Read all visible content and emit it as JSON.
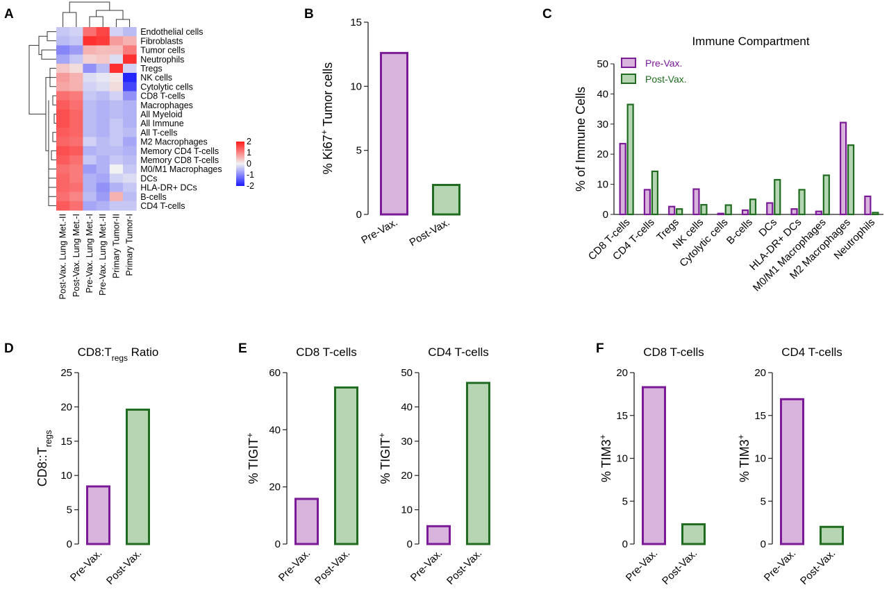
{
  "colors": {
    "pre_fill": "#d8b4dc",
    "pre_stroke": "#7a1a96",
    "post_fill": "#b6d6b3",
    "post_stroke": "#1f6b1f",
    "heat_low": "#1a1aff",
    "heat_mid": "#f2f2f2",
    "heat_high": "#ff1a1a"
  },
  "panels": {
    "A": "A",
    "B": "B",
    "C": "C",
    "D": "D",
    "E": "E",
    "F": "F"
  },
  "heatmap": {
    "rows": [
      "Endothelial cells",
      "Fibroblasts",
      "Tumor cells",
      "Neutrophils",
      "Tregs",
      "NK cells",
      "Cytolytic cells",
      "CD8 T-cells",
      "Macrophages",
      "All Myeloid",
      "All Immune",
      "All T-cells",
      "M2 Macrophages",
      "Memory CD4 T-cells",
      "Memory CD8 T-cells",
      "M0/M1 Macrophages",
      "DCs",
      "HLA-DR+ DCs",
      "B-cells",
      "CD4 T-cells"
    ],
    "cols": [
      "Post-Vax. Lung Met.-II",
      "Post-Vax. Lung Met.-I",
      "Pre-Vax. Lung Met.-I",
      "Pre-Vax. Lung Met.-II",
      "Primary Tumor-II",
      "Primary Tumor-I"
    ],
    "values": [
      [
        -0.4,
        -0.3,
        1.2,
        1.6,
        -0.3,
        -0.5
      ],
      [
        -0.5,
        -0.4,
        1.8,
        1.7,
        0.8,
        0.6
      ],
      [
        -1.0,
        -0.8,
        0.6,
        0.5,
        0.5,
        1.1
      ],
      [
        -0.7,
        -0.4,
        0.3,
        0.4,
        -0.2,
        1.8
      ],
      [
        0.4,
        0.2,
        -0.9,
        -0.5,
        1.8,
        -0.3
      ],
      [
        0.8,
        0.6,
        -0.2,
        -0.1,
        0.1,
        -1.9
      ],
      [
        0.7,
        0.6,
        -0.3,
        -0.2,
        0.2,
        -1.6
      ],
      [
        1.2,
        1.1,
        -0.4,
        -0.5,
        -0.3,
        -0.9
      ],
      [
        1.4,
        1.2,
        -0.5,
        -0.6,
        -0.5,
        -0.6
      ],
      [
        1.5,
        1.3,
        -0.5,
        -0.6,
        -0.5,
        -0.6
      ],
      [
        1.5,
        1.3,
        -0.5,
        -0.6,
        -0.4,
        -0.6
      ],
      [
        1.4,
        1.3,
        -0.5,
        -0.6,
        -0.4,
        -0.5
      ],
      [
        1.3,
        1.2,
        -0.3,
        -0.5,
        -0.4,
        -0.7
      ],
      [
        1.5,
        1.4,
        -0.6,
        -0.5,
        -0.5,
        -0.6
      ],
      [
        1.4,
        1.2,
        -0.4,
        -0.6,
        -0.4,
        -0.5
      ],
      [
        1.2,
        1.1,
        -0.8,
        -0.6,
        0.0,
        -0.4
      ],
      [
        1.3,
        1.1,
        -0.6,
        -0.7,
        -0.3,
        -0.2
      ],
      [
        1.3,
        1.2,
        -0.6,
        -0.9,
        -0.6,
        -0.4
      ],
      [
        1.2,
        1.0,
        -0.5,
        -0.8,
        0.6,
        -0.5
      ],
      [
        1.4,
        1.2,
        -0.7,
        -0.6,
        -0.4,
        -0.4
      ]
    ],
    "legend_ticks": [
      "2",
      "1",
      "0",
      "-1",
      "-2"
    ]
  },
  "chart_data": [
    {
      "panel": "A",
      "type": "heatmap",
      "rows": "see heatmap.rows",
      "cols": "see heatmap.cols",
      "scale": [
        -2,
        2
      ]
    },
    {
      "panel": "B",
      "type": "bar",
      "categories": [
        "Pre-Vax.",
        "Post-Vax."
      ],
      "values": [
        12.6,
        2.3
      ],
      "ylabel": "% Ki67+ Tumor cells",
      "ylim": [
        0,
        15
      ],
      "yticks": [
        "0",
        "5",
        "10",
        "15"
      ]
    },
    {
      "panel": "C",
      "type": "bar",
      "title": "Immune Compartment",
      "ylabel": "% of Immune Cells",
      "ylim": [
        0,
        50
      ],
      "yticks": [
        "0",
        "10",
        "20",
        "30",
        "40",
        "50"
      ],
      "categories": [
        "CD8 T-cells",
        "CD4 T-cells",
        "Tregs",
        "NK cells",
        "Cytolytic cells",
        "B-cells",
        "DCs",
        "HLA-DR+ DCs",
        "M0/M1 Macrophages",
        "M2 Macrophages",
        "Neutrophils"
      ],
      "series": [
        {
          "name": "Pre-Vax.",
          "values": [
            23.5,
            8.2,
            2.6,
            8.4,
            0.3,
            1.4,
            3.8,
            1.8,
            1.0,
            30.5,
            6.0
          ]
        },
        {
          "name": "Post-Vax.",
          "values": [
            36.5,
            14.3,
            1.8,
            3.2,
            3.1,
            5.0,
            11.5,
            8.2,
            13.0,
            23.0,
            0.6
          ]
        }
      ],
      "legend": "top-left"
    },
    {
      "panel": "D",
      "type": "bar",
      "title": "CD8:Tregs Ratio",
      "ylabel": "CD8::Tregs",
      "categories": [
        "Pre-Vax.",
        "Post-Vax."
      ],
      "values": [
        8.4,
        19.6
      ],
      "ylim": [
        0,
        25
      ],
      "yticks": [
        "0",
        "5",
        "10",
        "15",
        "20",
        "25"
      ]
    },
    {
      "panel": "E1",
      "type": "bar",
      "title": "CD8 T-cells",
      "ylabel": "% TIGIT+",
      "categories": [
        "Pre-Vax.",
        "Post-Vax."
      ],
      "values": [
        15.8,
        54.8
      ],
      "ylim": [
        0,
        60
      ],
      "yticks": [
        "0",
        "20",
        "40",
        "60"
      ]
    },
    {
      "panel": "E2",
      "type": "bar",
      "title": "CD4 T-cells",
      "ylabel": "% TIGIT+",
      "categories": [
        "Pre-Vax.",
        "Post-Vax."
      ],
      "values": [
        5.2,
        47.0
      ],
      "ylim": [
        0,
        50
      ],
      "yticks": [
        "0",
        "10",
        "20",
        "30",
        "40",
        "50"
      ]
    },
    {
      "panel": "F1",
      "type": "bar",
      "title": "CD8 T-cells",
      "ylabel": "% TIM3+",
      "categories": [
        "Pre-Vax.",
        "Post-Vax."
      ],
      "values": [
        18.3,
        2.3
      ],
      "ylim": [
        0,
        20
      ],
      "yticks": [
        "0",
        "5",
        "10",
        "15",
        "20"
      ]
    },
    {
      "panel": "F2",
      "type": "bar",
      "title": "CD4 T-cells",
      "ylabel": "% TIM3+",
      "categories": [
        "Pre-Vax.",
        "Post-Vax."
      ],
      "values": [
        16.9,
        2.0
      ],
      "ylim": [
        0,
        20
      ],
      "yticks": [
        "0",
        "5",
        "10",
        "15",
        "20"
      ]
    }
  ]
}
